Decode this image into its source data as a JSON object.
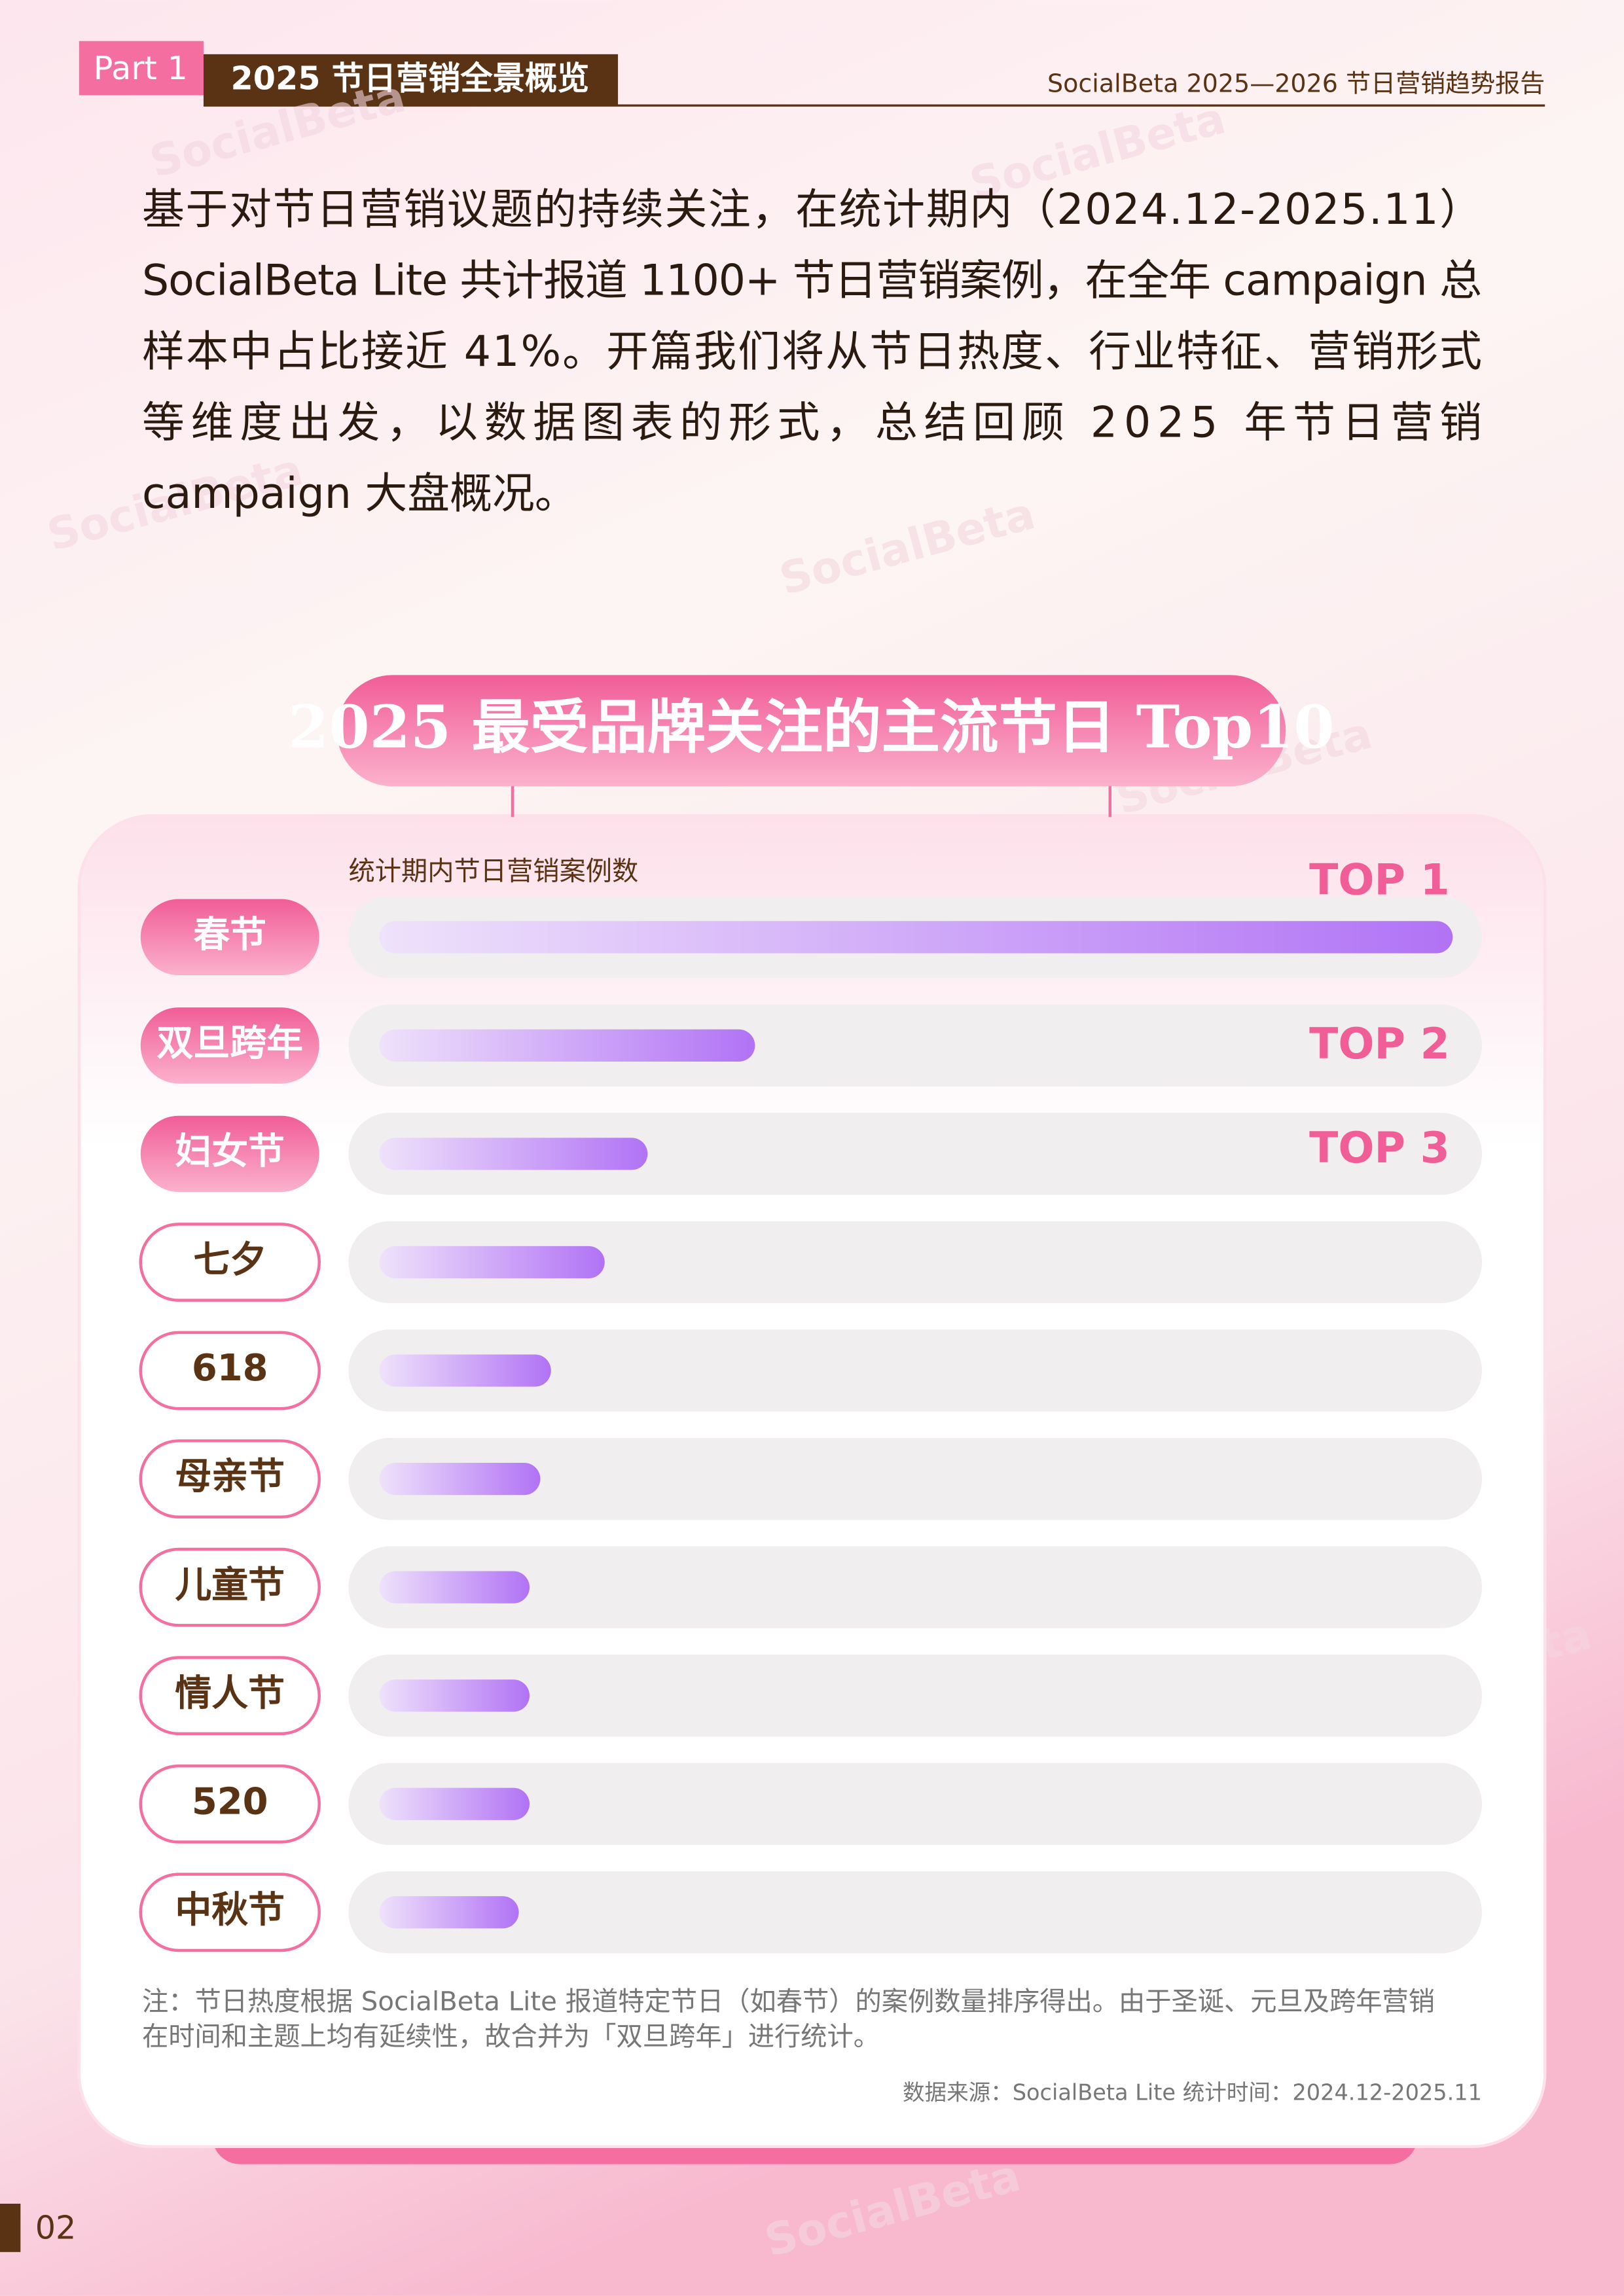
{
  "header": {
    "tag": "Part 1",
    "section": "2025 节日营销全景概览",
    "report": "SocialBeta 2025—2026 节日营销趋势报告"
  },
  "body": {
    "lines": [
      "基于对节日营销议题的持续关注，在统计期内（2024.12-2025.11）",
      "SocialBeta Lite 共计报道 1100+ 节日营销案例，在全年 campaign 总",
      "样本中占比接近 41%。开篇我们将从节日热度、行业特征、营销形式",
      "等维度出发，以数据图表的形式，总结回顾 2025 年节日营销",
      "campaign 大盘概况。"
    ]
  },
  "chart_data": {
    "type": "bar",
    "title": "2025 最受品牌关注的主流节日 Top10",
    "subtitle": "统计期内节日营销案例数",
    "categories": [
      "春节",
      "双旦跨年",
      "妇女节",
      "七夕",
      "618",
      "母亲节",
      "儿童节",
      "情人节",
      "520",
      "中秋节"
    ],
    "values": [
      100,
      35,
      25,
      21,
      16,
      15,
      14,
      14,
      14,
      13
    ],
    "xlim": [
      0,
      100
    ],
    "top_labels": [
      "TOP 1",
      "TOP 2",
      "TOP 3"
    ],
    "color": "#b173f5"
  },
  "note": {
    "lines": [
      "注：节日热度根据 SocialBeta Lite 报道特定节日（如春节）的案例数量排序得出。由于圣诞、元旦及跨年营销",
      "在时间和主题上均有延续性，故合并为「双旦跨年」进行统计。"
    ],
    "source": "数据来源：SocialBeta Lite 统计时间：2024.12-2025.11"
  },
  "page_number": "02",
  "watermark": "SocialBeta"
}
